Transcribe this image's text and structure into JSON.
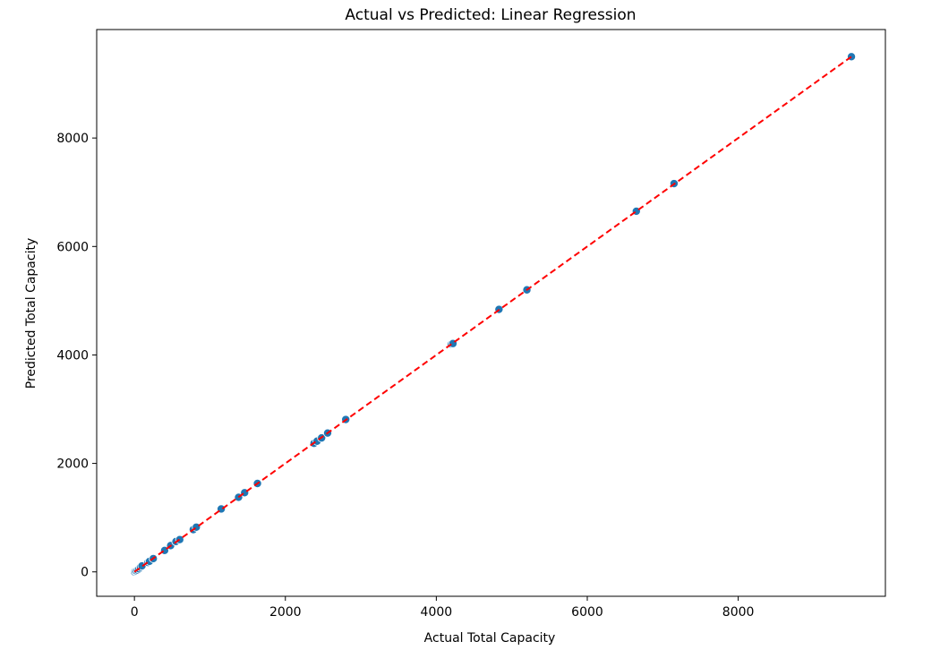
{
  "chart_data": {
    "type": "scatter",
    "title": "Actual vs Predicted: Linear Regression",
    "xlabel": "Actual Total Capacity",
    "ylabel": "Predicted Total Capacity",
    "xlim": [
      -500,
      9950
    ],
    "ylim": [
      -450,
      10000
    ],
    "xticks": [
      0,
      2000,
      4000,
      6000,
      8000
    ],
    "yticks": [
      0,
      2000,
      4000,
      6000,
      8000
    ],
    "xtick_labels": [
      "0",
      "2000",
      "4000",
      "6000",
      "8000"
    ],
    "ytick_labels": [
      "0",
      "2000",
      "4000",
      "6000",
      "8000"
    ],
    "grid": false,
    "point_color": "#1f77b4",
    "point_edge_color": "#ffffff",
    "line_color": "#ff0000",
    "reference_line": {
      "style": "dashed",
      "from": [
        0,
        0
      ],
      "to": [
        9500,
        9500
      ]
    },
    "points": [
      {
        "x": 0,
        "y": 0
      },
      {
        "x": 10,
        "y": 15
      },
      {
        "x": 25,
        "y": 20
      },
      {
        "x": 40,
        "y": 35
      },
      {
        "x": 60,
        "y": 55
      },
      {
        "x": 80,
        "y": 85
      },
      {
        "x": 100,
        "y": 110
      },
      {
        "x": 180,
        "y": 175
      },
      {
        "x": 200,
        "y": 195
      },
      {
        "x": 250,
        "y": 245
      },
      {
        "x": 400,
        "y": 395
      },
      {
        "x": 480,
        "y": 485
      },
      {
        "x": 550,
        "y": 560
      },
      {
        "x": 600,
        "y": 595
      },
      {
        "x": 780,
        "y": 780
      },
      {
        "x": 820,
        "y": 825
      },
      {
        "x": 1150,
        "y": 1160
      },
      {
        "x": 1380,
        "y": 1375
      },
      {
        "x": 1460,
        "y": 1460
      },
      {
        "x": 1630,
        "y": 1630
      },
      {
        "x": 2380,
        "y": 2370
      },
      {
        "x": 2420,
        "y": 2410
      },
      {
        "x": 2480,
        "y": 2470
      },
      {
        "x": 2560,
        "y": 2560
      },
      {
        "x": 2800,
        "y": 2810
      },
      {
        "x": 4200,
        "y": 4200
      },
      {
        "x": 4220,
        "y": 4210
      },
      {
        "x": 4830,
        "y": 4840
      },
      {
        "x": 5200,
        "y": 5200
      },
      {
        "x": 6650,
        "y": 6650
      },
      {
        "x": 7150,
        "y": 7160
      },
      {
        "x": 9500,
        "y": 9500
      }
    ]
  }
}
